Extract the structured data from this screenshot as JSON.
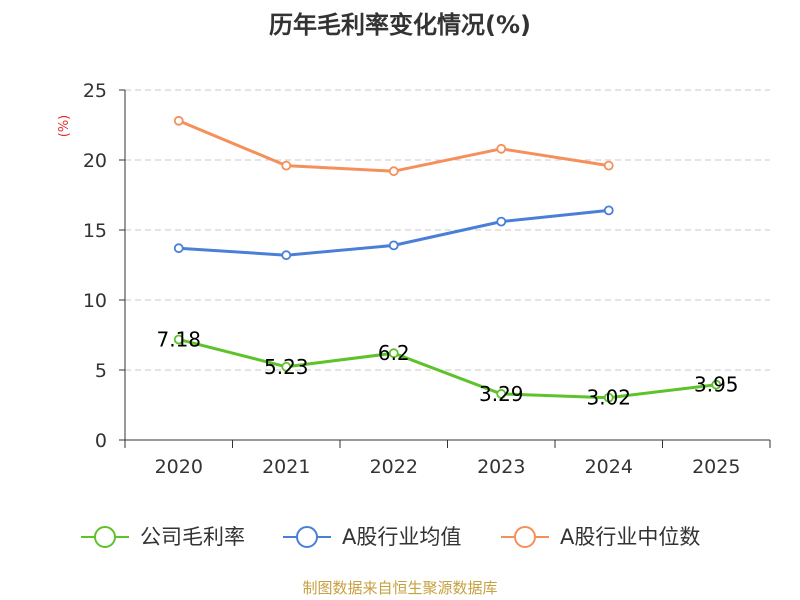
{
  "chart_data": {
    "type": "line",
    "title": "历年毛利率变化情况(%)",
    "ylabel": "(%)",
    "xlabel": "",
    "categories": [
      "2020",
      "2021",
      "2022",
      "2023",
      "2024",
      "2025"
    ],
    "ylim": [
      0,
      25
    ],
    "yticks": [
      0,
      5,
      10,
      15,
      20,
      25
    ],
    "grid": true,
    "legend_position": "bottom",
    "series": [
      {
        "name": "公司毛利率",
        "color": "#5ec22a",
        "values": [
          7.18,
          5.23,
          6.2,
          3.29,
          3.02,
          3.95
        ],
        "labels": [
          "7.18",
          "5.23",
          "6.2",
          "3.29",
          "3.02",
          "3.95"
        ]
      },
      {
        "name": "A股行业均值",
        "color": "#4a7fd8",
        "values": [
          13.7,
          13.2,
          13.9,
          15.6,
          16.4,
          null
        ]
      },
      {
        "name": "A股行业中位数",
        "color": "#f5905a",
        "values": [
          22.8,
          19.6,
          19.2,
          20.8,
          19.6,
          null
        ]
      }
    ],
    "source": "制图数据来自恒生聚源数据库"
  }
}
